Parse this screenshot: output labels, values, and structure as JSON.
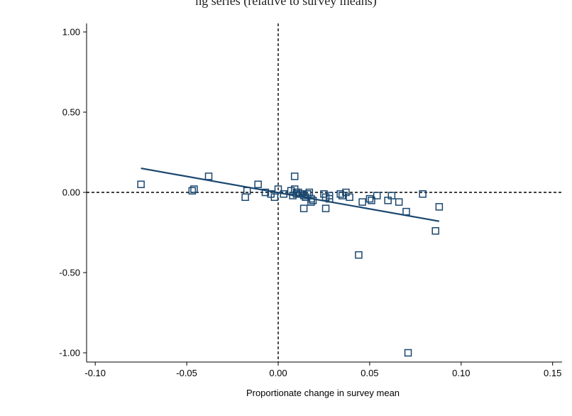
{
  "page": {
    "title_fragment": "ng series (relative to survey means)"
  },
  "colors": {
    "series": "#1a476f",
    "axis": "#000000",
    "background": "#ffffff"
  },
  "chart_data": {
    "type": "scatter",
    "title": "",
    "xlabel": "Proportionate change in survey mean",
    "ylabel": "",
    "xlim": [
      -0.1,
      0.15
    ],
    "ylim": [
      -1.0,
      1.0
    ],
    "xticks": [
      -0.1,
      -0.05,
      0.0,
      0.05,
      0.1,
      0.15
    ],
    "xtick_labels": [
      "-0.10",
      "-0.05",
      "0.00",
      "0.05",
      "0.10",
      "0.15"
    ],
    "yticks": [
      1.0,
      0.5,
      0.0,
      -0.5,
      -1.0
    ],
    "ytick_labels": [
      "1.00",
      "0.50",
      "0.00",
      "-0.50",
      "-1.00"
    ],
    "grid": false,
    "reference_lines": {
      "x": 0,
      "y": 0,
      "style": "dashed"
    },
    "series": [
      {
        "kind": "points",
        "marker": "hollow-square",
        "x": [
          -0.075,
          -0.047,
          -0.046,
          -0.038,
          -0.018,
          -0.017,
          -0.011,
          -0.007,
          -0.004,
          -0.002,
          0.0,
          0.003,
          0.007,
          0.008,
          0.009,
          0.009,
          0.01,
          0.01,
          0.011,
          0.012,
          0.013,
          0.014,
          0.014,
          0.015,
          0.016,
          0.017,
          0.018,
          0.018,
          0.019,
          0.025,
          0.026,
          0.026,
          0.028,
          0.028,
          0.034,
          0.035,
          0.037,
          0.039,
          0.044,
          0.046,
          0.05,
          0.051,
          0.054,
          0.06,
          0.062,
          0.066,
          0.07,
          0.071,
          0.079,
          0.086,
          0.088
        ],
        "y": [
          0.05,
          0.01,
          0.02,
          0.1,
          -0.03,
          0.01,
          0.05,
          0.0,
          -0.01,
          -0.03,
          0.02,
          -0.01,
          0.01,
          -0.02,
          0.1,
          0.02,
          0.0,
          -0.01,
          0.0,
          -0.01,
          -0.01,
          -0.1,
          -0.02,
          -0.03,
          -0.01,
          0.0,
          -0.04,
          -0.06,
          -0.05,
          -0.01,
          -0.03,
          -0.1,
          -0.02,
          -0.04,
          -0.01,
          -0.02,
          0.0,
          -0.03,
          -0.39,
          -0.06,
          -0.04,
          -0.05,
          -0.02,
          -0.05,
          -0.02,
          -0.06,
          -0.12,
          -1.0,
          -0.01,
          -0.24,
          -0.09
        ]
      },
      {
        "kind": "fit-line",
        "x": [
          -0.075,
          0.088
        ],
        "y": [
          0.15,
          -0.18
        ]
      }
    ]
  }
}
